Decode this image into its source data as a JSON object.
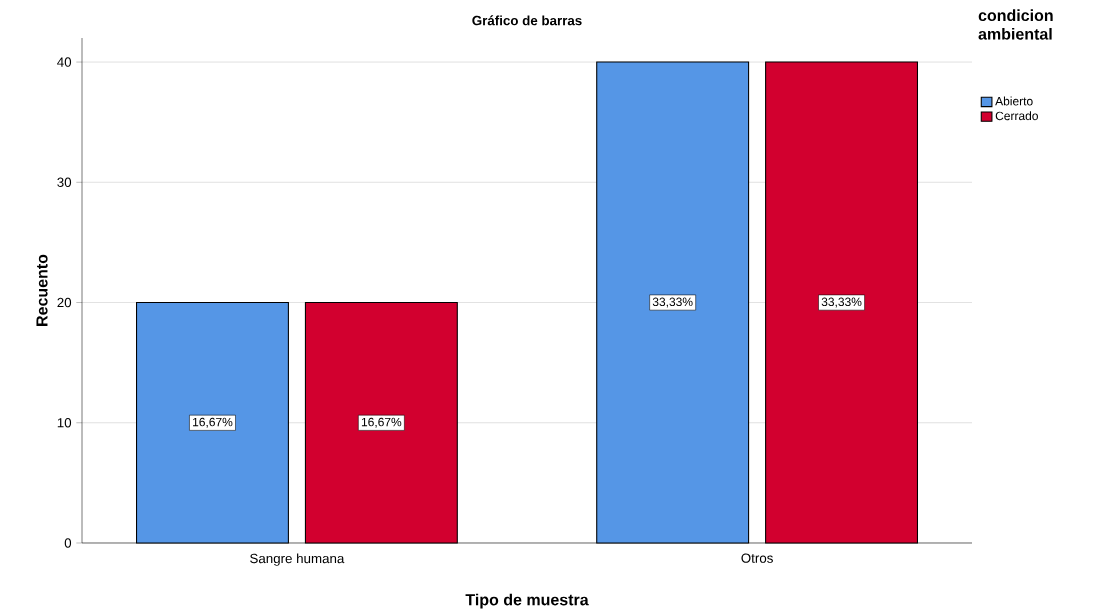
{
  "chart_data": {
    "type": "bar",
    "title": "Gráfico de barras",
    "xlabel": "Tipo de muestra",
    "ylabel": "Recuento",
    "legend_title": "condicion ambiental",
    "categories": [
      "Sangre humana",
      "Otros"
    ],
    "series": [
      {
        "name": "Abierto",
        "color": "#5596e6",
        "values": [
          20,
          40
        ]
      },
      {
        "name": "Cerrado",
        "color": "#d2002f",
        "values": [
          20,
          40
        ]
      }
    ],
    "annotations": [
      "16,67%",
      "33,33%",
      "16,67%",
      "33,33%"
    ],
    "ylim": [
      0,
      42
    ],
    "yticks": [
      0,
      10,
      20,
      30,
      40
    ],
    "grid": "y",
    "legend": "top right"
  }
}
